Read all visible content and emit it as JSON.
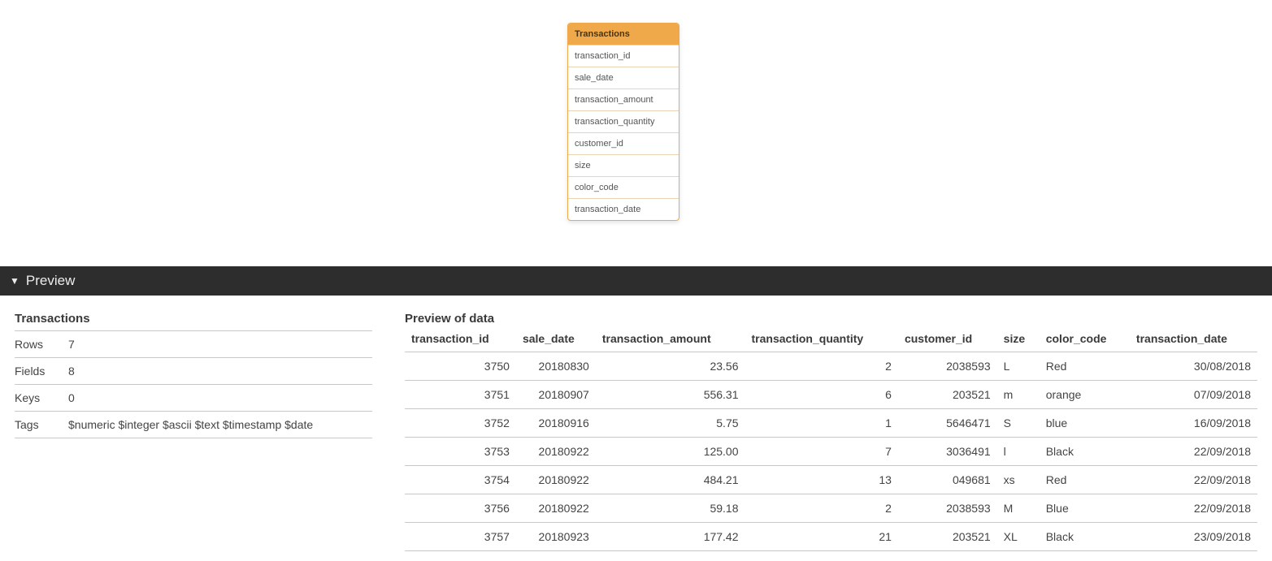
{
  "entity": {
    "title": "Transactions",
    "fields": [
      "transaction_id",
      "sale_date",
      "transaction_amount",
      "transaction_quantity",
      "customer_id",
      "size",
      "color_code",
      "transaction_date"
    ],
    "header_bg": "#f0a94a",
    "header_fg": "#4a3410",
    "border_color": "#f0a94a"
  },
  "preview_bar": {
    "label": "Preview"
  },
  "meta": {
    "title": "Transactions",
    "rows": [
      {
        "label": "Rows",
        "value": "7"
      },
      {
        "label": "Fields",
        "value": "8"
      },
      {
        "label": "Keys",
        "value": "0"
      },
      {
        "label": "Tags",
        "value": "$numeric $integer $ascii $text $timestamp $date"
      }
    ]
  },
  "data": {
    "title": "Preview of data",
    "columns": [
      {
        "name": "transaction_id",
        "align": "num"
      },
      {
        "name": "sale_date",
        "align": "num"
      },
      {
        "name": "transaction_amount",
        "align": "num"
      },
      {
        "name": "transaction_quantity",
        "align": "num"
      },
      {
        "name": "customer_id",
        "align": "num"
      },
      {
        "name": "size",
        "align": "txt"
      },
      {
        "name": "color_code",
        "align": "txt"
      },
      {
        "name": "transaction_date",
        "align": "num"
      }
    ],
    "rows": [
      [
        "3750",
        "20180830",
        "23.56",
        "2",
        "2038593",
        "L",
        "Red",
        "30/08/2018"
      ],
      [
        "3751",
        "20180907",
        "556.31",
        "6",
        "203521",
        "m",
        "orange",
        "07/09/2018"
      ],
      [
        "3752",
        "20180916",
        "5.75",
        "1",
        "5646471",
        "S",
        "blue",
        "16/09/2018"
      ],
      [
        "3753",
        "20180922",
        "125.00",
        "7",
        "3036491",
        "l",
        "Black",
        "22/09/2018"
      ],
      [
        "3754",
        "20180922",
        "484.21",
        "13",
        "049681",
        "xs",
        "Red",
        "22/09/2018"
      ],
      [
        "3756",
        "20180922",
        "59.18",
        "2",
        "2038593",
        "M",
        "Blue",
        "22/09/2018"
      ],
      [
        "3757",
        "20180923",
        "177.42",
        "21",
        "203521",
        "XL",
        "Black",
        "23/09/2018"
      ]
    ]
  }
}
